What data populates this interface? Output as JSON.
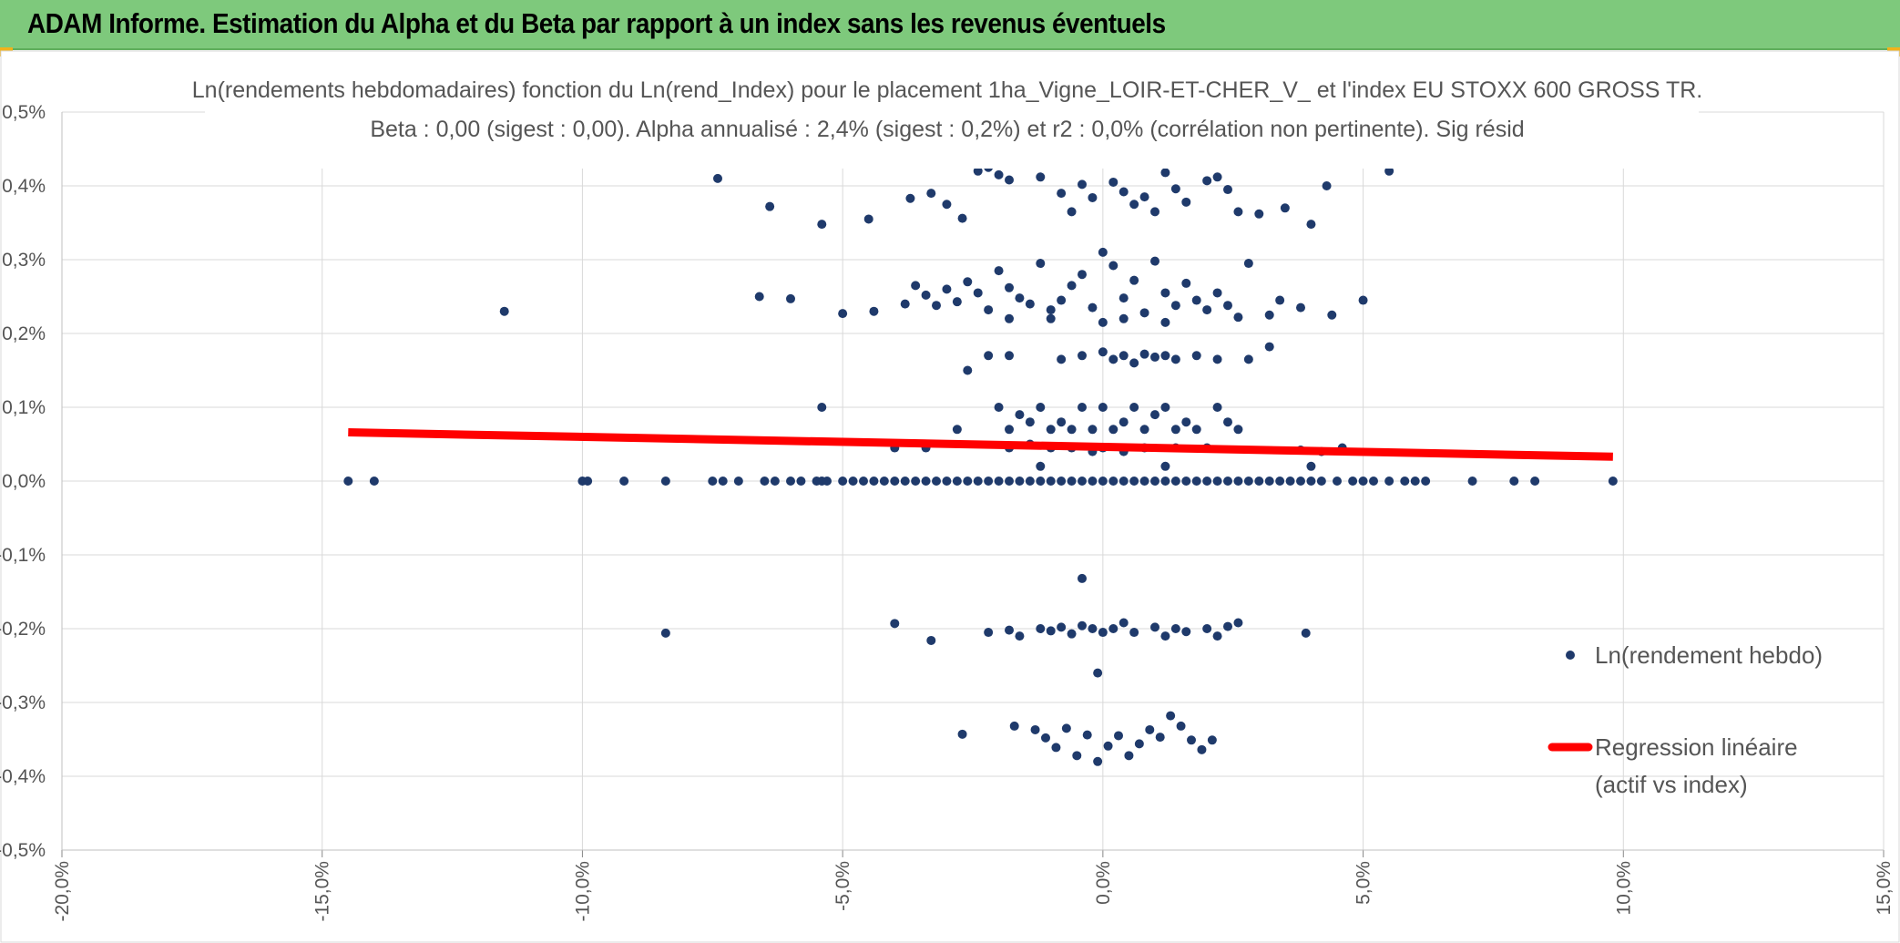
{
  "header": {
    "title": "ADAM Informe. Estimation du Alpha et du Beta par rapport à un index sans les revenus éventuels"
  },
  "colors": {
    "banner": "#7ec97c",
    "points": "#1f3a6b",
    "regression": "#ff0000",
    "grid": "#d9d9d9"
  },
  "chart_data": {
    "type": "scatter",
    "title": "Ln(rendements hebdomadaires) fonction du Ln(rend_Index) pour le placement 1ha_Vigne_LOIR-ET-CHER_V_ et l'index EU STOXX 600 GROSS TR.",
    "subtitle": "Beta : 0,00 (sigest : 0,00). Alpha annualisé : 2,4% (sigest : 0,2%) et r2 : 0,0% (corrélation non pertinente). Sig résid",
    "xlim": [
      -0.2,
      0.15
    ],
    "ylim": [
      -0.005,
      0.005
    ],
    "x_ticks": [
      "-20,0%",
      "-15,0%",
      "-10,0%",
      "-5,0%",
      "0,0%",
      "5,0%",
      "10,0%",
      "15,0%"
    ],
    "y_ticks": [
      "0,5%",
      "0,4%",
      "0,3%",
      "0,2%",
      "0,1%",
      "0,0%",
      "-0,1%",
      "-0,2%",
      "-0,3%",
      "-0,4%",
      "-0,5%"
    ],
    "grid": true,
    "legend_position": "right",
    "legend": {
      "points_label": "Ln(rendement hebdo)",
      "line_label_1": "Regression linéaire",
      "line_label_2": "(actif vs index)"
    },
    "regression": {
      "x": [
        -0.145,
        0.098
      ],
      "y": [
        0.00066,
        0.00033
      ]
    },
    "series": [
      {
        "name": "Ln(rendement hebdo)",
        "points": [
          [
            -0.145,
            0
          ],
          [
            -0.14,
            0
          ],
          [
            -0.1,
            0
          ],
          [
            -0.099,
            0
          ],
          [
            -0.092,
            0
          ],
          [
            -0.084,
            0
          ],
          [
            -0.075,
            0
          ],
          [
            -0.073,
            0
          ],
          [
            -0.07,
            0
          ],
          [
            -0.065,
            0
          ],
          [
            -0.063,
            0
          ],
          [
            -0.06,
            0
          ],
          [
            -0.058,
            0
          ],
          [
            -0.055,
            0
          ],
          [
            -0.054,
            0
          ],
          [
            -0.053,
            0
          ],
          [
            -0.05,
            0
          ],
          [
            -0.048,
            0
          ],
          [
            -0.046,
            0
          ],
          [
            -0.044,
            0
          ],
          [
            -0.042,
            0
          ],
          [
            -0.04,
            0
          ],
          [
            -0.038,
            0
          ],
          [
            -0.036,
            0
          ],
          [
            -0.034,
            0
          ],
          [
            -0.032,
            0
          ],
          [
            -0.03,
            0
          ],
          [
            -0.028,
            0
          ],
          [
            -0.026,
            0
          ],
          [
            -0.024,
            0
          ],
          [
            -0.022,
            0
          ],
          [
            -0.02,
            0
          ],
          [
            -0.018,
            0
          ],
          [
            -0.016,
            0
          ],
          [
            -0.014,
            0
          ],
          [
            -0.012,
            0
          ],
          [
            -0.01,
            0
          ],
          [
            -0.008,
            0
          ],
          [
            -0.006,
            0
          ],
          [
            -0.004,
            0
          ],
          [
            -0.002,
            0
          ],
          [
            0,
            0
          ],
          [
            0.002,
            0
          ],
          [
            0.004,
            0
          ],
          [
            0.006,
            0
          ],
          [
            0.008,
            0
          ],
          [
            0.01,
            0
          ],
          [
            0.012,
            0
          ],
          [
            0.014,
            0
          ],
          [
            0.016,
            0
          ],
          [
            0.018,
            0
          ],
          [
            0.02,
            0
          ],
          [
            0.022,
            0
          ],
          [
            0.024,
            0
          ],
          [
            0.026,
            0
          ],
          [
            0.028,
            0
          ],
          [
            0.03,
            0
          ],
          [
            0.032,
            0
          ],
          [
            0.034,
            0
          ],
          [
            0.036,
            0
          ],
          [
            0.038,
            0
          ],
          [
            0.04,
            0
          ],
          [
            0.042,
            0
          ],
          [
            0.045,
            0
          ],
          [
            0.048,
            0
          ],
          [
            0.05,
            0
          ],
          [
            0.052,
            0
          ],
          [
            0.055,
            0
          ],
          [
            0.058,
            0
          ],
          [
            0.06,
            0
          ],
          [
            0.062,
            0
          ],
          [
            0.071,
            0
          ],
          [
            0.079,
            0
          ],
          [
            0.083,
            0
          ],
          [
            0.098,
            0
          ],
          [
            -0.115,
            0.0023
          ],
          [
            -0.074,
            0.0041
          ],
          [
            -0.064,
            0.00372
          ],
          [
            -0.054,
            0.00348
          ],
          [
            -0.045,
            0.00355
          ],
          [
            -0.037,
            0.00383
          ],
          [
            -0.033,
            0.0039
          ],
          [
            -0.03,
            0.00375
          ],
          [
            -0.027,
            0.00356
          ],
          [
            -0.024,
            0.0042
          ],
          [
            -0.022,
            0.00425
          ],
          [
            -0.02,
            0.00415
          ],
          [
            -0.018,
            0.00408
          ],
          [
            -0.016,
            0.00432
          ],
          [
            -0.012,
            0.00412
          ],
          [
            -0.008,
            0.0039
          ],
          [
            -0.006,
            0.00365
          ],
          [
            -0.004,
            0.00402
          ],
          [
            -0.002,
            0.00384
          ],
          [
            0.002,
            0.00405
          ],
          [
            0.004,
            0.00392
          ],
          [
            0.006,
            0.00375
          ],
          [
            0.008,
            0.00385
          ],
          [
            0.01,
            0.00365
          ],
          [
            0.012,
            0.00418
          ],
          [
            0.014,
            0.00396
          ],
          [
            0.016,
            0.00378
          ],
          [
            0.02,
            0.00407
          ],
          [
            0.022,
            0.00412
          ],
          [
            0.024,
            0.00395
          ],
          [
            0.026,
            0.00365
          ],
          [
            0.03,
            0.00362
          ],
          [
            0.035,
            0.0037
          ],
          [
            0.04,
            0.00348
          ],
          [
            0.043,
            0.004
          ],
          [
            0.055,
            0.0042
          ],
          [
            -0.066,
            0.0025
          ],
          [
            -0.06,
            0.00247
          ],
          [
            -0.05,
            0.00227
          ],
          [
            -0.044,
            0.0023
          ],
          [
            -0.038,
            0.0024
          ],
          [
            -0.036,
            0.00265
          ],
          [
            -0.034,
            0.00252
          ],
          [
            -0.032,
            0.00238
          ],
          [
            -0.03,
            0.0026
          ],
          [
            -0.028,
            0.00243
          ],
          [
            -0.026,
            0.0027
          ],
          [
            -0.024,
            0.00255
          ],
          [
            -0.022,
            0.00232
          ],
          [
            -0.02,
            0.00285
          ],
          [
            -0.018,
            0.00262
          ],
          [
            -0.016,
            0.00248
          ],
          [
            -0.014,
            0.0024
          ],
          [
            -0.012,
            0.00295
          ],
          [
            -0.01,
            0.00232
          ],
          [
            -0.008,
            0.00245
          ],
          [
            -0.006,
            0.00265
          ],
          [
            -0.004,
            0.0028
          ],
          [
            -0.002,
            0.00235
          ],
          [
            0,
            0.0031
          ],
          [
            0.002,
            0.00292
          ],
          [
            0.004,
            0.00248
          ],
          [
            0.006,
            0.00272
          ],
          [
            0.008,
            0.00228
          ],
          [
            0.01,
            0.00298
          ],
          [
            0.012,
            0.00255
          ],
          [
            0.014,
            0.00238
          ],
          [
            0.016,
            0.00268
          ],
          [
            0.018,
            0.00245
          ],
          [
            0.02,
            0.00232
          ],
          [
            0.022,
            0.00255
          ],
          [
            0.024,
            0.00238
          ],
          [
            0.026,
            0.00222
          ],
          [
            0.028,
            0.00295
          ],
          [
            0.032,
            0.00225
          ],
          [
            0.034,
            0.00245
          ],
          [
            0.038,
            0.00235
          ],
          [
            0.044,
            0.00225
          ],
          [
            0.05,
            0.00245
          ],
          [
            -0.018,
            0.0022
          ],
          [
            -0.01,
            0.0022
          ],
          [
            0,
            0.00215
          ],
          [
            0.004,
            0.0022
          ],
          [
            0.012,
            0.00215
          ],
          [
            -0.026,
            0.0015
          ],
          [
            -0.022,
            0.0017
          ],
          [
            -0.018,
            0.0017
          ],
          [
            -0.008,
            0.00165
          ],
          [
            -0.004,
            0.0017
          ],
          [
            0,
            0.00175
          ],
          [
            0.002,
            0.00165
          ],
          [
            0.004,
            0.0017
          ],
          [
            0.006,
            0.0016
          ],
          [
            0.008,
            0.00172
          ],
          [
            0.01,
            0.00168
          ],
          [
            0.012,
            0.0017
          ],
          [
            0.014,
            0.00165
          ],
          [
            0.018,
            0.0017
          ],
          [
            0.022,
            0.00165
          ],
          [
            0.028,
            0.00165
          ],
          [
            0.032,
            0.00182
          ],
          [
            -0.054,
            0.001
          ],
          [
            -0.028,
            0.0007
          ],
          [
            -0.02,
            0.001
          ],
          [
            -0.018,
            0.0007
          ],
          [
            -0.016,
            0.0009
          ],
          [
            -0.014,
            0.0008
          ],
          [
            -0.012,
            0.001
          ],
          [
            -0.01,
            0.0007
          ],
          [
            -0.008,
            0.0008
          ],
          [
            -0.006,
            0.0007
          ],
          [
            -0.004,
            0.001
          ],
          [
            -0.002,
            0.0007
          ],
          [
            0,
            0.001
          ],
          [
            0.002,
            0.0007
          ],
          [
            0.004,
            0.0008
          ],
          [
            0.006,
            0.001
          ],
          [
            0.008,
            0.0007
          ],
          [
            0.01,
            0.0009
          ],
          [
            0.012,
            0.001
          ],
          [
            0.014,
            0.0007
          ],
          [
            0.016,
            0.0008
          ],
          [
            0.018,
            0.0007
          ],
          [
            0.022,
            0.001
          ],
          [
            0.024,
            0.0008
          ],
          [
            0.026,
            0.0007
          ],
          [
            -0.04,
            0.00045
          ],
          [
            -0.034,
            0.00045
          ],
          [
            -0.018,
            0.00045
          ],
          [
            -0.014,
            0.0005
          ],
          [
            -0.012,
            0.0002
          ],
          [
            -0.01,
            0.00045
          ],
          [
            -0.006,
            0.00045
          ],
          [
            -0.002,
            0.0004
          ],
          [
            0,
            0.00045
          ],
          [
            0.004,
            0.0004
          ],
          [
            0.008,
            0.00045
          ],
          [
            0.012,
            0.0002
          ],
          [
            0.014,
            0.00045
          ],
          [
            0.02,
            0.00045
          ],
          [
            0.038,
            0.00042
          ],
          [
            0.04,
            0.0002
          ],
          [
            0.042,
            0.0004
          ],
          [
            0.046,
            0.00045
          ],
          [
            -0.004,
            -0.00132
          ],
          [
            -0.001,
            -0.0026
          ],
          [
            -0.084,
            -0.00206
          ],
          [
            -0.04,
            -0.00193
          ],
          [
            -0.033,
            -0.00216
          ],
          [
            -0.022,
            -0.00205
          ],
          [
            -0.018,
            -0.00202
          ],
          [
            -0.016,
            -0.0021
          ],
          [
            -0.012,
            -0.002
          ],
          [
            -0.01,
            -0.00203
          ],
          [
            -0.008,
            -0.00198
          ],
          [
            -0.006,
            -0.00207
          ],
          [
            -0.004,
            -0.00196
          ],
          [
            -0.002,
            -0.002
          ],
          [
            0,
            -0.00205
          ],
          [
            0.002,
            -0.002
          ],
          [
            0.004,
            -0.00192
          ],
          [
            0.006,
            -0.00205
          ],
          [
            0.01,
            -0.00198
          ],
          [
            0.012,
            -0.0021
          ],
          [
            0.014,
            -0.002
          ],
          [
            0.016,
            -0.00204
          ],
          [
            0.02,
            -0.002
          ],
          [
            0.022,
            -0.0021
          ],
          [
            0.024,
            -0.00197
          ],
          [
            0.026,
            -0.00192
          ],
          [
            0.039,
            -0.00206
          ],
          [
            -0.027,
            -0.00343
          ],
          [
            -0.017,
            -0.00332
          ],
          [
            -0.013,
            -0.00337
          ],
          [
            -0.011,
            -0.00348
          ],
          [
            -0.009,
            -0.00361
          ],
          [
            -0.007,
            -0.00335
          ],
          [
            -0.005,
            -0.00372
          ],
          [
            -0.003,
            -0.00344
          ],
          [
            -0.001,
            -0.0038
          ],
          [
            0.001,
            -0.00359
          ],
          [
            0.003,
            -0.00345
          ],
          [
            0.005,
            -0.00372
          ],
          [
            0.007,
            -0.00356
          ],
          [
            0.009,
            -0.00337
          ],
          [
            0.011,
            -0.00347
          ],
          [
            0.013,
            -0.00318
          ],
          [
            0.015,
            -0.00332
          ],
          [
            0.017,
            -0.00351
          ],
          [
            0.019,
            -0.00364
          ],
          [
            0.021,
            -0.00351
          ]
        ]
      }
    ]
  }
}
